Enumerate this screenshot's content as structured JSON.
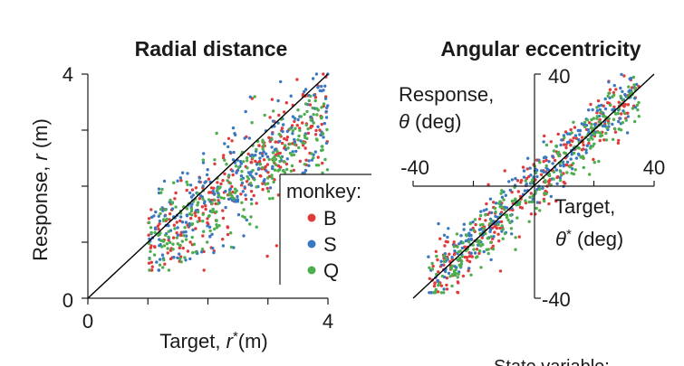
{
  "chart_data": [
    {
      "type": "scatter",
      "title": "Radial distance",
      "xlabel": "Target, r*(m)",
      "xlabel_parts": {
        "pre": "Target, ",
        "var": "r",
        "sup": "*",
        "post": "(m)"
      },
      "ylabel": "Response, r (m)",
      "ylabel_parts": {
        "pre": "Response, ",
        "var": "r",
        "post": " (m)"
      },
      "xlim": [
        0,
        4
      ],
      "ylim": [
        0,
        4
      ],
      "x_tick_labels": [
        "0",
        "4"
      ],
      "y_tick_labels": [
        "0",
        "4"
      ],
      "identity_line": true,
      "legend": {
        "title": "monkey:",
        "placement": "bottom-right",
        "entries": [
          {
            "label": "B",
            "color": "#e03b3b"
          },
          {
            "label": "S",
            "color": "#3a78c2"
          },
          {
            "label": "Q",
            "color": "#4cae4c"
          }
        ]
      },
      "series": [
        {
          "name": "B",
          "color": "#e03b3b",
          "trend": {
            "slope": 0.78,
            "intercept": 0.18,
            "spread": 0.42
          }
        },
        {
          "name": "S",
          "color": "#3a78c2",
          "trend": {
            "slope": 0.78,
            "intercept": 0.22,
            "spread": 0.45
          }
        },
        {
          "name": "Q",
          "color": "#4cae4c",
          "trend": {
            "slope": 0.76,
            "intercept": 0.15,
            "spread": 0.42
          }
        }
      ],
      "x_range": [
        1.0,
        4.0
      ]
    },
    {
      "type": "scatter",
      "title": "Angular eccentricity",
      "xlabel_lines": [
        "Target,"
      ],
      "xlabel_var": "θ",
      "xlabel_sup": "*",
      "xlabel_post": " (deg)",
      "ylabel_lines": [
        "Response,"
      ],
      "ylabel_var": "θ",
      "ylabel_post": " (deg)",
      "xlim": [
        -40,
        40
      ],
      "ylim": [
        -40,
        40
      ],
      "x_tick_labels": [
        "-40",
        "40"
      ],
      "y_tick_labels": [
        "40",
        "-40"
      ],
      "identity_line": true,
      "series": [
        {
          "name": "B",
          "color": "#e03b3b",
          "trend": {
            "slope": 1.0,
            "intercept": 0,
            "spread": 5
          }
        },
        {
          "name": "S",
          "color": "#3a78c2",
          "trend": {
            "slope": 1.0,
            "intercept": 1,
            "spread": 5
          }
        },
        {
          "name": "Q",
          "color": "#4cae4c",
          "trend": {
            "slope": 1.0,
            "intercept": -1,
            "spread": 5
          }
        }
      ],
      "x_range": [
        -35,
        35
      ]
    }
  ],
  "footer_text": "State variable:"
}
